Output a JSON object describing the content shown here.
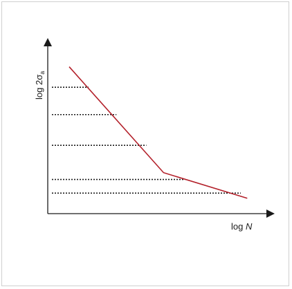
{
  "chart_data": {
    "type": "line",
    "title": "",
    "xlabel_prefix": "log ",
    "xlabel_var": "N",
    "ylabel_main": "log 2σ",
    "ylabel_sub": "a",
    "xlim": [
      0,
      10
    ],
    "ylim": [
      0,
      10
    ],
    "grid": false,
    "series": [
      {
        "color": "#b3202a",
        "x": [
          1.0,
          5.4,
          9.3
        ],
        "y": [
          8.6,
          2.4,
          0.9
        ]
      }
    ],
    "guides": [
      {
        "y": 7.4,
        "x_end": 1.9
      },
      {
        "y": 5.8,
        "x_end": 3.2
      },
      {
        "y": 4.0,
        "x_end": 4.6
      },
      {
        "y": 2.0,
        "x_end": 6.4
      },
      {
        "y": 1.2,
        "x_end": 9.0
      }
    ]
  },
  "colors": {
    "axis": "#1a1a1a",
    "curve": "#b3202a",
    "guide": "#1a1a1a",
    "border": "#cfcfcf"
  }
}
